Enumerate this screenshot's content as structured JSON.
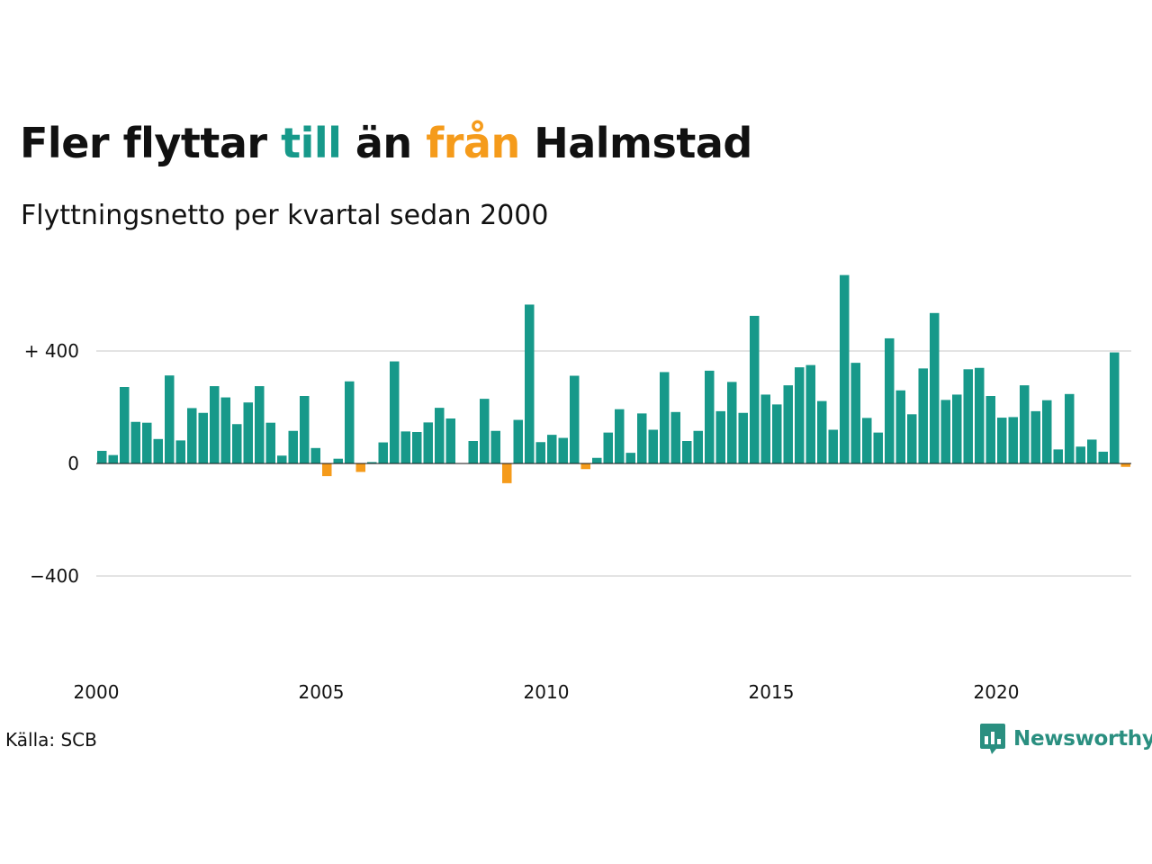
{
  "title": {
    "part1": "Fler flyttar ",
    "part2": "till",
    "part3": " än ",
    "part4": "från",
    "part5": " Halmstad"
  },
  "subtitle": "Flyttningsnetto per kvartal sedan 2000",
  "source": "Källa: SCB",
  "logo": {
    "text": "Newsworthy",
    "icon": "chart-bubble-icon"
  },
  "colors": {
    "positive": "#17998a",
    "negative": "#f59b1b",
    "grid": "#e3e3e3",
    "text": "#111111",
    "logo": "#2a8f80"
  },
  "chart_data": {
    "type": "bar",
    "x_start": "2000-Q1",
    "x_tick_labels": [
      "2000",
      "2005",
      "2010",
      "2015",
      "2020"
    ],
    "y_tick_labels": [
      "+ 400",
      "0",
      "−400"
    ],
    "y_ticks": [
      400,
      0,
      -400
    ],
    "ylim": [
      -650,
      700
    ],
    "grid": true,
    "values": [
      45,
      30,
      272,
      148,
      145,
      87,
      313,
      82,
      197,
      180,
      275,
      235,
      140,
      217,
      275,
      145,
      28,
      116,
      240,
      55,
      -45,
      17,
      292,
      -30,
      5,
      75,
      363,
      114,
      112,
      146,
      198,
      160,
      0,
      80,
      230,
      116,
      -70,
      155,
      565,
      76,
      102,
      91,
      312,
      -20,
      20,
      110,
      193,
      38,
      178,
      120,
      325,
      183,
      80,
      116,
      330,
      186,
      290,
      180,
      525,
      245,
      210,
      278,
      342,
      350,
      222,
      120,
      670,
      358,
      162,
      110,
      445,
      260,
      175,
      338,
      535,
      226,
      245,
      335,
      340,
      240,
      163,
      165,
      278,
      186,
      225,
      50,
      247,
      60,
      85,
      42,
      395,
      -12
    ]
  }
}
